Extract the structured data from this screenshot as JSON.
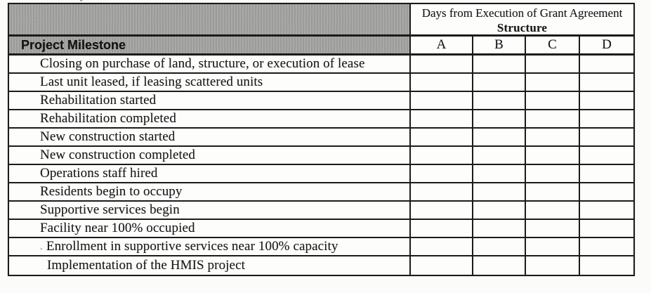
{
  "artifacts": {
    "cropped_glyph": "y"
  },
  "table": {
    "header": {
      "days_line1": "Days from Execution of Grant Agreement",
      "days_line2": "Structure",
      "milestone_label": "Project Milestone",
      "columns": [
        "A",
        "B",
        "C",
        "D"
      ]
    },
    "rows": [
      {
        "milestone": "Closing on purchase of land, structure, or execution of lease",
        "prefix": "",
        "values": [
          "",
          "",
          "",
          ""
        ]
      },
      {
        "milestone": "Last unit leased, if leasing scattered units",
        "prefix": "",
        "values": [
          "",
          "",
          "",
          ""
        ]
      },
      {
        "milestone": "Rehabilitation started",
        "prefix": "",
        "values": [
          "",
          "",
          "",
          ""
        ]
      },
      {
        "milestone": "Rehabilitation completed",
        "prefix": "",
        "values": [
          "",
          "",
          "",
          ""
        ]
      },
      {
        "milestone": "New construction started",
        "prefix": "",
        "values": [
          "",
          "",
          "",
          ""
        ]
      },
      {
        "milestone": "New construction completed",
        "prefix": "",
        "values": [
          "",
          "",
          "",
          ""
        ]
      },
      {
        "milestone": "Operations staff hired",
        "prefix": "",
        "values": [
          "",
          "",
          "",
          ""
        ]
      },
      {
        "milestone": "Residents begin to occupy",
        "prefix": "",
        "values": [
          "",
          "",
          "",
          ""
        ]
      },
      {
        "milestone": "Supportive services begin",
        "prefix": "",
        "values": [
          "",
          "",
          "",
          ""
        ]
      },
      {
        "milestone": "Facility near 100% occupied",
        "prefix": "",
        "values": [
          "",
          "",
          "",
          ""
        ]
      },
      {
        "milestone": "Enrollment in supportive services near 100% capacity",
        "prefix": ".",
        "values": [
          "",
          "",
          "",
          ""
        ]
      },
      {
        "milestone": "Implementation of the HMIS project",
        "prefix": "",
        "values": [
          "",
          "",
          "",
          ""
        ]
      }
    ],
    "colors": {
      "header_gray": "#a8a8a6",
      "border": "#1b1b1b",
      "text": "#1a1a1a"
    }
  }
}
